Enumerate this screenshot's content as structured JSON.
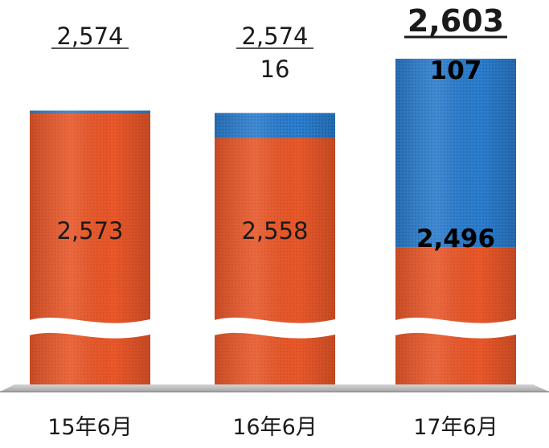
{
  "chart_data": {
    "type": "bar",
    "stacked": true,
    "categories": [
      "15年6月",
      "16年6月",
      "17年6月"
    ],
    "series": [
      {
        "values": [
          2573,
          2558,
          2496
        ],
        "color": "#e8582a"
      },
      {
        "values": [
          1,
          16,
          107
        ],
        "color": "#2d7fcf"
      }
    ],
    "totals": [
      2574,
      2574,
      2603
    ],
    "labels": {
      "totals": [
        "2,574",
        "2,574",
        "2,603"
      ],
      "base": [
        "2,573",
        "2,558",
        "2,496"
      ],
      "top": [
        "",
        "16",
        "107"
      ]
    },
    "emphasized_category": "17年6月",
    "axis_break": true,
    "title": "",
    "xlabel": "",
    "ylabel": "",
    "grid": false,
    "legend": "none"
  }
}
